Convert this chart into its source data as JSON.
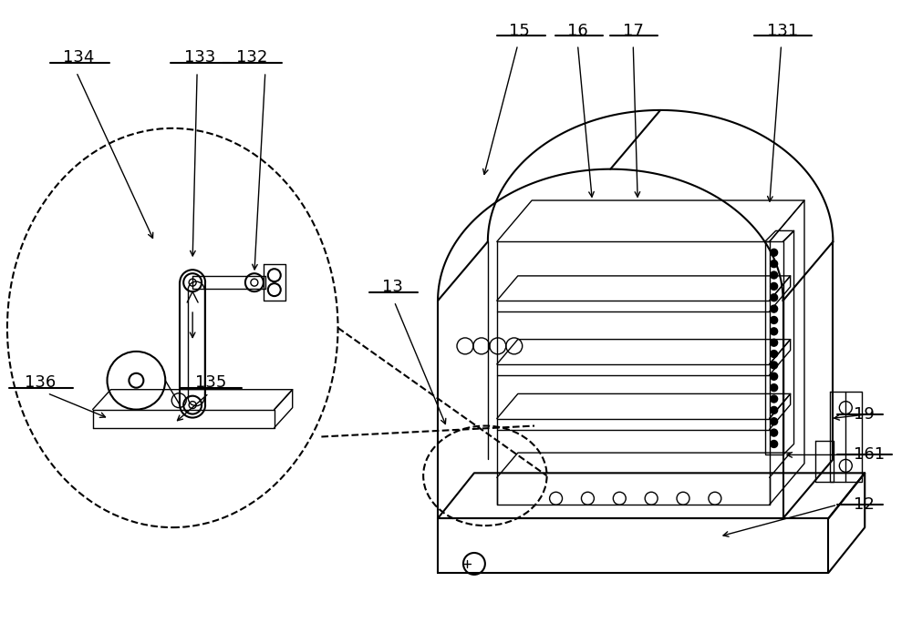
{
  "bg_color": "#ffffff",
  "line_color": "#000000",
  "lw": 1.5,
  "lw_thin": 1.0,
  "fig_width": 10.0,
  "fig_height": 7.06
}
